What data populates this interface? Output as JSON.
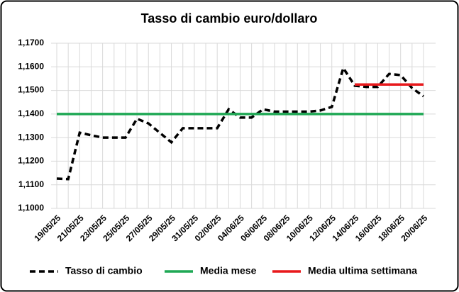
{
  "chart_data": {
    "type": "line",
    "title": "Tasso di cambio euro/dollaro",
    "categories": [
      "19/05/25",
      null,
      "21/05/25",
      null,
      "23/05/25",
      null,
      "25/05/25",
      null,
      "27/05/25",
      null,
      "29/05/25",
      null,
      "31/05/25",
      null,
      "02/06/25",
      null,
      "04/06/25",
      null,
      "06/06/25",
      null,
      "08/06/25",
      null,
      "10/06/25",
      null,
      "12/06/25",
      null,
      "14/06/25",
      null,
      "16/06/25",
      null,
      "18/06/25",
      null,
      "20/06/25"
    ],
    "series": [
      {
        "name": "Tasso di cambio",
        "color": "#000000",
        "dash": true,
        "values": [
          1.1126,
          1.1124,
          1.1321,
          1.131,
          1.13,
          1.13,
          1.13,
          1.138,
          1.136,
          1.132,
          1.128,
          1.134,
          1.134,
          1.134,
          1.134,
          1.142,
          1.1385,
          1.1385,
          1.142,
          1.141,
          1.141,
          1.141,
          1.141,
          1.1415,
          1.143,
          1.1595,
          1.152,
          1.1515,
          1.1515,
          1.157,
          1.1565,
          1.151,
          1.1475
        ]
      },
      {
        "name": "Media mese",
        "color": "#1fa855",
        "values": [
          1.14,
          1.14,
          1.14,
          1.14,
          1.14,
          1.14,
          1.14,
          1.14,
          1.14,
          1.14,
          1.14,
          1.14,
          1.14,
          1.14,
          1.14,
          1.14,
          1.14,
          1.14,
          1.14,
          1.14,
          1.14,
          1.14,
          1.14,
          1.14,
          1.14,
          1.14,
          1.14,
          1.14,
          1.14,
          1.14,
          1.14,
          1.14,
          1.14
        ]
      },
      {
        "name": "Media ultima settimana",
        "color": "#e8191c",
        "values": [
          null,
          null,
          null,
          null,
          null,
          null,
          null,
          null,
          null,
          null,
          null,
          null,
          null,
          null,
          null,
          null,
          null,
          null,
          null,
          null,
          null,
          null,
          null,
          null,
          null,
          null,
          1.1525,
          1.1525,
          1.1525,
          1.1525,
          1.1525,
          1.1525,
          1.1525
        ]
      }
    ],
    "ylim": [
      1.1,
      1.17
    ],
    "yticks": [
      {
        "value": 1.1,
        "label": "1,1000"
      },
      {
        "value": 1.11,
        "label": "1,1100"
      },
      {
        "value": 1.12,
        "label": "1,1200"
      },
      {
        "value": 1.13,
        "label": "1,1300"
      },
      {
        "value": 1.14,
        "label": "1,1400"
      },
      {
        "value": 1.15,
        "label": "1,1500"
      },
      {
        "value": 1.16,
        "label": "1,1600"
      },
      {
        "value": 1.17,
        "label": "1,1700"
      }
    ],
    "grid": true,
    "legend": "bottom"
  }
}
